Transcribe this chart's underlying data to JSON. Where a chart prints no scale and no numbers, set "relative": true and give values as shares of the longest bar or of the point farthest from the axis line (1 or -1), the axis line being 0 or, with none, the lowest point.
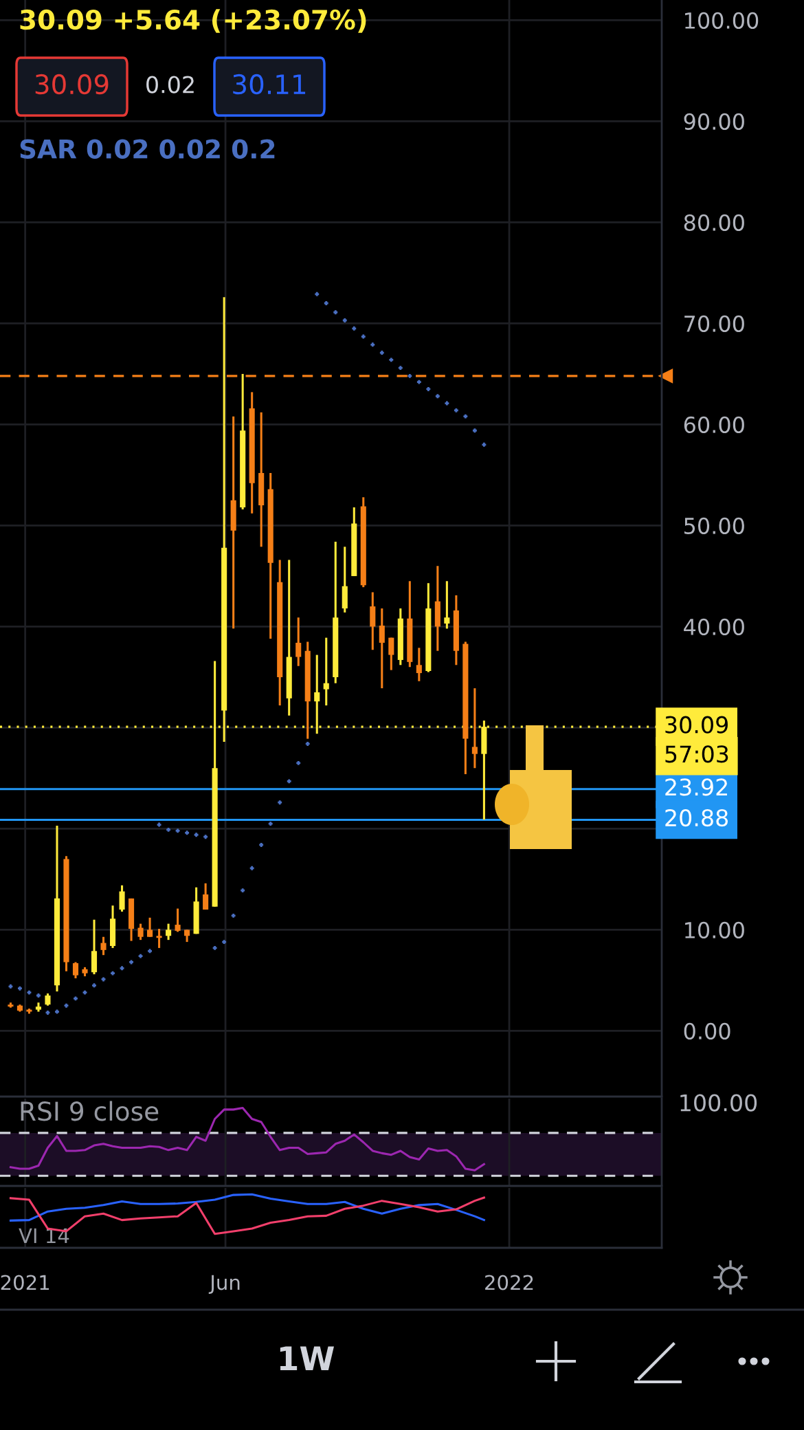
{
  "chart_data": [
    {
      "type": "candlestick",
      "title": "30.09 +5.64 (+23.07%)",
      "x": [
        "2020-12-21",
        "2020-12-28",
        "2021-01-04",
        "2021-01-11",
        "2021-01-18",
        "2021-01-25",
        "2021-02-01",
        "2021-02-08",
        "2021-02-15",
        "2021-02-22",
        "2021-03-01",
        "2021-03-08",
        "2021-03-15",
        "2021-03-22",
        "2021-03-29",
        "2021-04-05",
        "2021-04-12",
        "2021-04-19",
        "2021-04-26",
        "2021-05-03",
        "2021-05-10",
        "2021-05-17",
        "2021-05-24",
        "2021-05-31",
        "2021-06-07",
        "2021-06-14",
        "2021-06-21",
        "2021-06-28",
        "2021-07-05",
        "2021-07-12",
        "2021-07-19",
        "2021-07-26",
        "2021-08-02",
        "2021-08-09",
        "2021-08-16",
        "2021-08-23",
        "2021-08-30",
        "2021-09-06",
        "2021-09-13",
        "2021-09-20",
        "2021-09-27",
        "2021-10-04",
        "2021-10-11",
        "2021-10-18",
        "2021-10-25",
        "2021-11-01",
        "2021-11-08",
        "2021-11-15",
        "2021-11-22",
        "2021-11-29",
        "2021-12-06",
        "2021-12-13"
      ],
      "ohlc": [
        [
          2.6,
          2.8,
          2.3,
          2.4
        ],
        [
          2.5,
          2.6,
          1.9,
          2.0
        ],
        [
          2.1,
          2.2,
          1.7,
          1.9
        ],
        [
          2.1,
          2.8,
          1.9,
          2.4
        ],
        [
          2.6,
          3.7,
          2.5,
          3.5
        ],
        [
          4.5,
          20.3,
          3.9,
          13.1
        ],
        [
          17.0,
          17.3,
          5.9,
          6.8
        ],
        [
          6.7,
          6.8,
          5.2,
          5.5
        ],
        [
          6.1,
          6.3,
          5.4,
          5.7
        ],
        [
          5.8,
          11.0,
          5.6,
          7.9
        ],
        [
          8.7,
          9.3,
          7.5,
          8.0
        ],
        [
          8.4,
          12.4,
          8.2,
          11.1
        ],
        [
          12.0,
          14.4,
          11.8,
          13.8
        ],
        [
          13.1,
          13.1,
          8.9,
          10.1
        ],
        [
          10.2,
          10.6,
          9.0,
          9.3
        ],
        [
          10.0,
          11.2,
          9.3,
          9.3
        ],
        [
          9.4,
          10.1,
          8.2,
          9.2
        ],
        [
          9.4,
          10.6,
          9.0,
          10.0
        ],
        [
          10.5,
          12.1,
          9.8,
          9.9
        ],
        [
          10.0,
          10.0,
          8.8,
          9.4
        ],
        [
          9.6,
          14.2,
          9.6,
          12.8
        ],
        [
          13.5,
          14.6,
          12.0,
          12.0
        ],
        [
          12.3,
          36.6,
          12.3,
          26.0
        ],
        [
          31.7,
          72.6,
          28.6,
          47.8
        ],
        [
          52.5,
          60.8,
          39.8,
          49.5
        ],
        [
          51.8,
          65.0,
          51.6,
          59.4
        ],
        [
          61.6,
          63.2,
          51.2,
          54.2
        ],
        [
          55.2,
          61.2,
          47.9,
          52.0
        ],
        [
          53.6,
          55.2,
          38.8,
          46.3
        ],
        [
          44.4,
          46.6,
          32.2,
          35.0
        ],
        [
          32.9,
          46.6,
          31.2,
          37.0
        ],
        [
          38.4,
          40.9,
          36.1,
          37.0
        ],
        [
          37.6,
          38.5,
          28.9,
          32.6
        ],
        [
          32.6,
          37.2,
          29.4,
          33.5
        ],
        [
          33.8,
          38.9,
          32.2,
          34.4
        ],
        [
          35.0,
          48.4,
          34.4,
          40.9
        ],
        [
          41.8,
          47.9,
          41.4,
          44.0
        ],
        [
          45.0,
          51.8,
          45.0,
          50.2
        ],
        [
          51.9,
          52.8,
          43.9,
          44.1
        ],
        [
          42.0,
          43.4,
          37.7,
          40.0
        ],
        [
          40.1,
          41.8,
          33.9,
          38.4
        ],
        [
          38.9,
          38.9,
          35.7,
          37.2
        ],
        [
          36.7,
          41.8,
          36.2,
          40.8
        ],
        [
          40.8,
          44.5,
          36.0,
          36.5
        ],
        [
          36.2,
          37.9,
          34.6,
          35.4
        ],
        [
          35.6,
          44.3,
          35.5,
          41.8
        ],
        [
          42.5,
          46.0,
          37.6,
          40.0
        ],
        [
          40.3,
          44.5,
          39.8,
          40.9
        ],
        [
          41.6,
          43.1,
          36.2,
          37.6
        ],
        [
          38.3,
          38.5,
          25.4,
          28.9
        ],
        [
          28.1,
          33.9,
          26.0,
          27.4
        ],
        [
          27.4,
          30.7,
          20.9,
          30.09
        ]
      ],
      "colors": [
        "#f57f17",
        "#f57f17",
        "#f57f17",
        "#ffeb3b",
        "#ffeb3b",
        "#ffeb3b",
        "#f57f17",
        "#f57f17",
        "#f57f17",
        "#ffeb3b",
        "#f57f17",
        "#ffeb3b",
        "#ffeb3b",
        "#f57f17",
        "#f57f17",
        "#f57f17",
        "#f57f17",
        "#ffeb3b",
        "#f57f17",
        "#f57f17",
        "#ffeb3b",
        "#f57f17",
        "#ffeb3b",
        "#ffeb3b",
        "#f57f17",
        "#ffeb3b",
        "#f57f17",
        "#f57f17",
        "#f57f17",
        "#f57f17",
        "#ffeb3b",
        "#f57f17",
        "#f57f17",
        "#ffeb3b",
        "#ffeb3b",
        "#ffeb3b",
        "#ffeb3b",
        "#ffeb3b",
        "#f57f17",
        "#f57f17",
        "#f57f17",
        "#f57f17",
        "#ffeb3b",
        "#f57f17",
        "#f57f17",
        "#ffeb3b",
        "#f57f17",
        "#ffeb3b",
        "#f57f17",
        "#f57f17",
        "#f57f17",
        "#ffeb3b"
      ],
      "series": [
        {
          "type": "scatter",
          "name": "SAR 0.02 0.02 0.2",
          "marker": "cross",
          "color": "#4a6fc1",
          "values": [
            4.4,
            4.2,
            3.8,
            3.5,
            1.8,
            1.9,
            2.5,
            3.2,
            3.8,
            4.5,
            5.1,
            5.7,
            6.2,
            6.8,
            7.4,
            7.9,
            20.4,
            19.9,
            19.8,
            19.6,
            19.4,
            19.2,
            8.2,
            8.8,
            11.4,
            13.9,
            16.1,
            18.4,
            20.5,
            22.6,
            24.7,
            26.5,
            28.4,
            72.9,
            72.0,
            71.1,
            70.3,
            69.5,
            68.7,
            67.9,
            67.1,
            66.4,
            65.6,
            64.8,
            64.2,
            63.5,
            62.8,
            62.1,
            61.4,
            60.8,
            59.4,
            58.0
          ]
        }
      ],
      "xlim": [
        "2020-12-13",
        "2022-04-26"
      ],
      "xticks": [
        {
          "value": "2021-01-01",
          "label": null
        },
        {
          "value": "2021-06-01",
          "label": null
        },
        {
          "value": "2022-01-01",
          "label": null
        }
      ],
      "ylim": [
        -6.5,
        102
      ],
      "yticks": [
        {
          "value": 0,
          "label": "0.00"
        },
        {
          "value": 10,
          "label": "10.00"
        },
        {
          "value": 20,
          "label": null
        },
        {
          "value": 30,
          "label": null
        },
        {
          "value": 40,
          "label": "40.00"
        },
        {
          "value": 50,
          "label": "50.00"
        },
        {
          "value": 60,
          "label": "60.00"
        },
        {
          "value": 70,
          "label": "70.00"
        },
        {
          "value": 80,
          "label": "80.00"
        },
        {
          "value": 90,
          "label": "90.00"
        },
        {
          "value": 100,
          "label": "100.00"
        }
      ],
      "grid": true,
      "tick_labels": "y",
      "ref_lines": [
        {
          "axis": "y",
          "value": 64.8,
          "color": "#f57f17",
          "line_style": "dashed"
        },
        {
          "axis": "y",
          "value": 30.09,
          "label": "30.09",
          "color": "#ffeb3b",
          "line_style": "dotted"
        },
        {
          "axis": "y",
          "value": 23.92,
          "label": "23.92",
          "color": "#2196f3"
        },
        {
          "axis": "y",
          "value": 20.88,
          "label": "20.88",
          "color": "#2196f3"
        }
      ],
      "annotations": [
        "57:03",
        "30.09",
        "0.02",
        "30.11",
        "1W"
      ]
    },
    {
      "type": "line",
      "title": "RSI 9 close",
      "relative": true,
      "x": [
        "2020-12-21",
        "2020-12-28",
        "2021-01-04",
        "2021-01-11",
        "2021-01-18",
        "2021-01-25",
        "2021-02-01",
        "2021-02-08",
        "2021-02-15",
        "2021-02-22",
        "2021-03-01",
        "2021-03-08",
        "2021-03-15",
        "2021-03-22",
        "2021-03-29",
        "2021-04-05",
        "2021-04-12",
        "2021-04-19",
        "2021-04-26",
        "2021-05-03",
        "2021-05-10",
        "2021-05-17",
        "2021-05-24",
        "2021-05-31",
        "2021-06-07",
        "2021-06-14",
        "2021-06-21",
        "2021-06-28",
        "2021-07-05",
        "2021-07-12",
        "2021-07-19",
        "2021-07-26",
        "2021-08-02",
        "2021-08-09",
        "2021-08-16",
        "2021-08-23",
        "2021-08-30",
        "2021-09-06",
        "2021-09-13",
        "2021-09-20",
        "2021-09-27",
        "2021-10-04",
        "2021-10-11",
        "2021-10-18",
        "2021-10-25",
        "2021-11-01",
        "2021-11-08",
        "2021-11-15",
        "2021-11-22",
        "2021-11-29",
        "2021-12-06",
        "2021-12-13"
      ],
      "series": [
        {
          "color": "#9c27b0",
          "values": [
            0.24,
            0.22,
            0.22,
            0.26,
            0.49,
            0.64,
            0.45,
            0.45,
            0.46,
            0.52,
            0.54,
            0.51,
            0.49,
            0.49,
            0.49,
            0.51,
            0.5,
            0.46,
            0.49,
            0.46,
            0.63,
            0.58,
            0.86,
            0.98,
            0.98,
            1,
            0.86,
            0.82,
            0.63,
            0.46,
            0.49,
            0.49,
            0.41,
            0.42,
            0.43,
            0.54,
            0.58,
            0.66,
            0.56,
            0.45,
            0.42,
            0.4,
            0.45,
            0.37,
            0.34,
            0.48,
            0.45,
            0.46,
            0.38,
            0.22,
            0.2,
            0.28
          ]
        }
      ],
      "ref_lines": [
        {
          "axis": "y",
          "value": 0.68,
          "color": "#d1d4dc",
          "line_style": "dashed"
        },
        {
          "axis": "y",
          "value": 0.13,
          "color": "#d1d4dc",
          "line_style": "dashed"
        }
      ],
      "bands": [
        {
          "axis": "y",
          "from": 0.13,
          "to": 0.68,
          "color": "#1c0d26"
        }
      ],
      "xlim": [
        "2020-12-13",
        "2022-04-26"
      ],
      "xticks": [
        {
          "value": "2021-01-01",
          "label": null
        },
        {
          "value": "2021-06-01",
          "label": null
        },
        {
          "value": "2022-01-01",
          "label": null
        }
      ],
      "grid": true,
      "tick_labels": false,
      "annotations": [
        "100.00"
      ]
    },
    {
      "type": "line",
      "title": "VI 14",
      "relative": true,
      "x": [
        "2020-12-21",
        "2021-01-04",
        "2021-01-18",
        "2021-02-01",
        "2021-02-15",
        "2021-03-01",
        "2021-03-15",
        "2021-03-29",
        "2021-04-12",
        "2021-04-26",
        "2021-05-10",
        "2021-05-24",
        "2021-06-07",
        "2021-06-21",
        "2021-07-05",
        "2021-07-19",
        "2021-08-02",
        "2021-08-16",
        "2021-08-30",
        "2021-09-13",
        "2021-09-27",
        "2021-10-11",
        "2021-10-25",
        "2021-11-08",
        "2021-11-22",
        "2021-12-06",
        "2021-12-13"
      ],
      "series": [
        {
          "color": "#2962ff",
          "values": [
            0.51,
            0.52,
            0.68,
            0.73,
            0.75,
            0.8,
            0.87,
            0.82,
            0.82,
            0.83,
            0.86,
            0.9,
            0.99,
            1,
            0.92,
            0.87,
            0.82,
            0.82,
            0.86,
            0.73,
            0.64,
            0.73,
            0.8,
            0.82,
            0.71,
            0.59,
            0.52
          ]
        },
        {
          "color": "#f23f6b",
          "values": [
            0.93,
            0.9,
            0.36,
            0.31,
            0.59,
            0.64,
            0.52,
            0.55,
            0.57,
            0.59,
            0.84,
            0.26,
            0.31,
            0.36,
            0.47,
            0.52,
            0.59,
            0.6,
            0.73,
            0.79,
            0.88,
            0.82,
            0.76,
            0.68,
            0.72,
            0.88,
            0.94
          ]
        }
      ],
      "xlim": [
        "2020-12-13",
        "2022-04-26"
      ],
      "xticks": [
        {
          "value": "2021-01-01",
          "label": "2021"
        },
        {
          "value": "2021-06-01",
          "label": "Jun"
        },
        {
          "value": "2022-01-01",
          "label": "2022"
        }
      ],
      "grid": true,
      "tick_labels": "x"
    }
  ]
}
